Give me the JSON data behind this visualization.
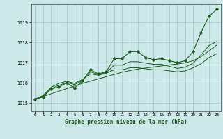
{
  "title": "Graphe pression niveau de la mer (hPa)",
  "bg_color": "#cce8e8",
  "line_color": "#1a5c1a",
  "marker_color": "#1a5c1a",
  "xlim": [
    -0.5,
    23.5
  ],
  "ylim": [
    1014.6,
    1019.9
  ],
  "yticks": [
    1015,
    1016,
    1017,
    1018,
    1019
  ],
  "xticks": [
    0,
    1,
    2,
    3,
    4,
    5,
    6,
    7,
    8,
    9,
    10,
    11,
    12,
    13,
    14,
    15,
    16,
    17,
    18,
    19,
    20,
    21,
    22,
    23
  ],
  "series": {
    "main": [
      1015.2,
      1015.3,
      1015.7,
      1015.8,
      1016.0,
      1015.75,
      1016.1,
      1016.65,
      1016.45,
      1016.55,
      1017.2,
      1017.2,
      1017.55,
      1017.55,
      1017.25,
      1017.15,
      1017.2,
      1017.1,
      1017.0,
      1017.1,
      1017.55,
      1018.5,
      1019.3,
      1019.65
    ],
    "smooth1": [
      1015.2,
      1015.35,
      1015.72,
      1015.88,
      1016.02,
      1015.92,
      1016.12,
      1016.55,
      1016.42,
      1016.52,
      1016.88,
      1016.88,
      1017.05,
      1017.05,
      1016.98,
      1016.92,
      1016.92,
      1016.82,
      1016.72,
      1016.78,
      1016.98,
      1017.38,
      1017.85,
      1018.05
    ],
    "smooth2": [
      1015.2,
      1015.38,
      1015.78,
      1015.98,
      1016.08,
      1015.98,
      1016.18,
      1016.45,
      1016.38,
      1016.48,
      1016.65,
      1016.65,
      1016.75,
      1016.75,
      1016.7,
      1016.65,
      1016.65,
      1016.6,
      1016.55,
      1016.6,
      1016.75,
      1016.95,
      1017.25,
      1017.45
    ],
    "trend": [
      1015.2,
      1015.33,
      1015.46,
      1015.59,
      1015.72,
      1015.85,
      1015.98,
      1016.09,
      1016.2,
      1016.31,
      1016.42,
      1016.53,
      1016.61,
      1016.69,
      1016.74,
      1016.79,
      1016.84,
      1016.89,
      1016.94,
      1016.99,
      1017.1,
      1017.3,
      1017.58,
      1017.88
    ]
  }
}
